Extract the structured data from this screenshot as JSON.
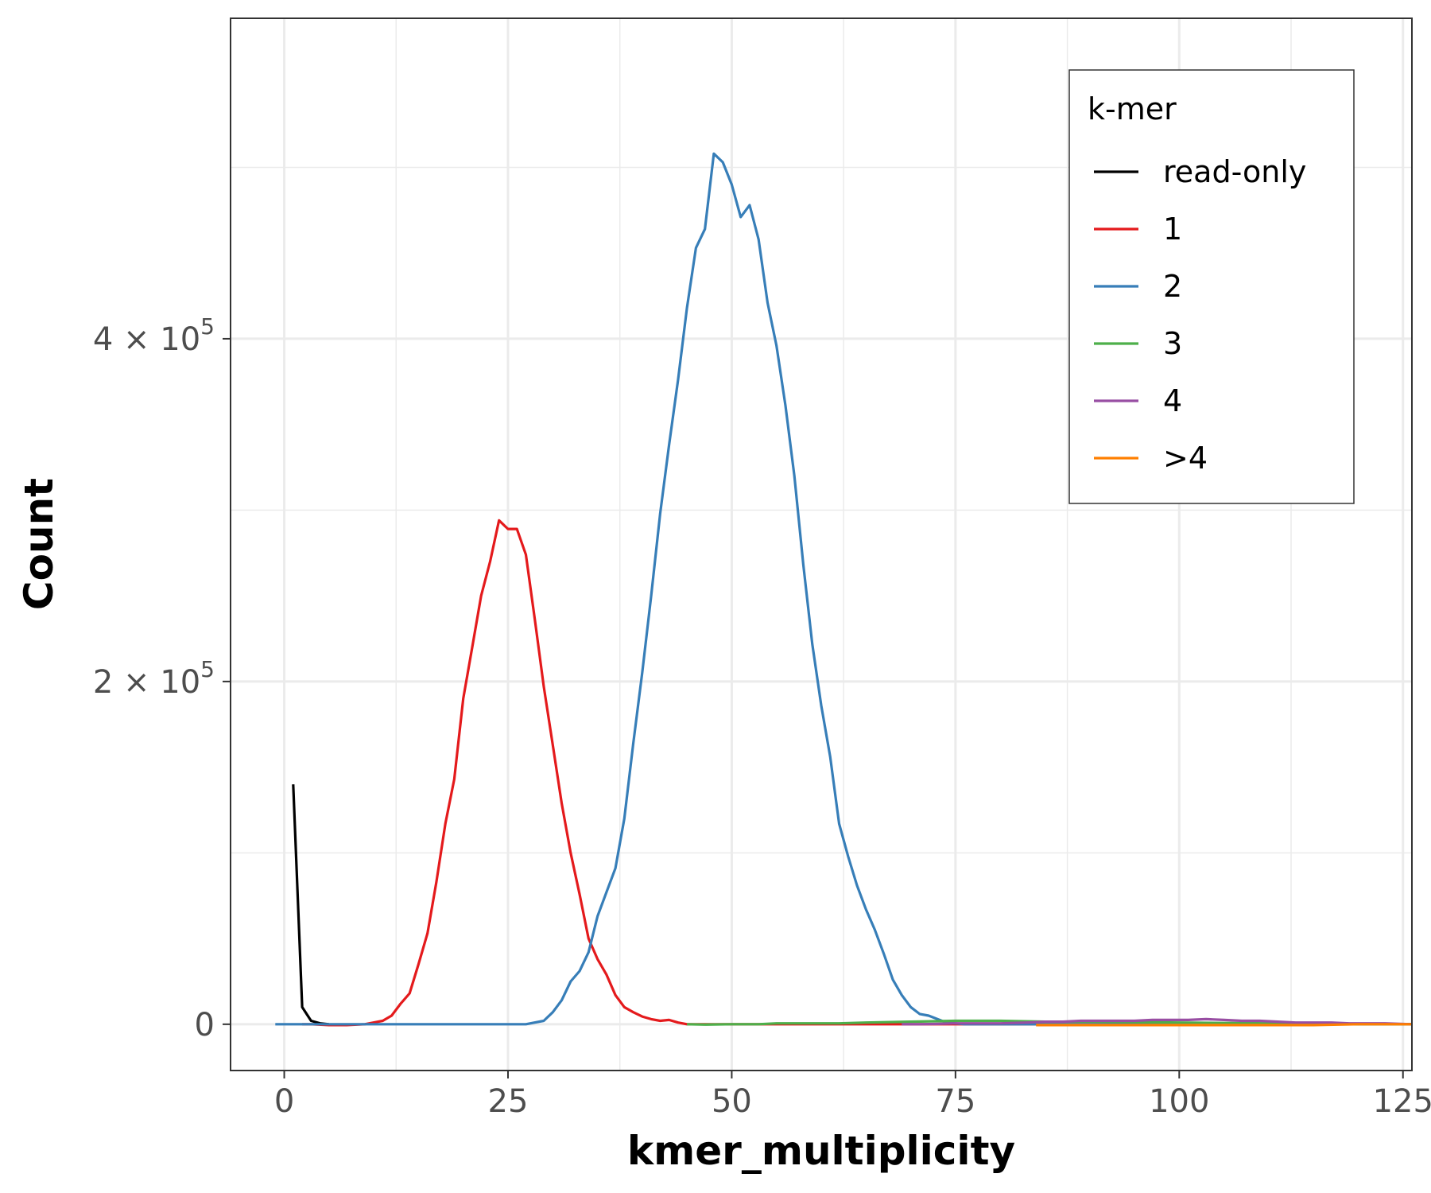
{
  "chart_data": {
    "type": "line",
    "xlabel": "kmer_multiplicity",
    "ylabel": "Count",
    "xlim": [
      -6,
      126
    ],
    "ylim": [
      -27000,
      587000
    ],
    "x_ticks": [
      0,
      25,
      50,
      75,
      100,
      125
    ],
    "x_tick_labels": [
      "0",
      "25",
      "50",
      "75",
      "100",
      "125"
    ],
    "y_ticks": [
      0,
      200000,
      400000
    ],
    "y_tick_labels": [
      {
        "mantissa": "0",
        "exp": ""
      },
      {
        "mantissa": "2 × 10",
        "exp": "5"
      },
      {
        "mantissa": "4 × 10",
        "exp": "5"
      }
    ],
    "grid": true,
    "legend": {
      "title": "k-mer",
      "position": "top-right"
    },
    "series": [
      {
        "name": "read-only",
        "color": "#000000",
        "x": [
          1,
          2,
          3,
          4,
          5
        ],
        "y": [
          140000,
          10000,
          2000,
          500,
          0
        ]
      },
      {
        "name": "1",
        "color": "#e41a1c",
        "x": [
          2,
          3,
          5,
          7,
          9,
          11,
          12,
          13,
          14,
          15,
          16,
          17,
          18,
          19,
          20,
          21,
          22,
          23,
          24,
          25,
          26,
          27,
          28,
          29,
          30,
          31,
          32,
          33,
          34,
          35,
          36,
          37,
          38,
          39,
          40,
          41,
          42,
          43,
          44,
          45,
          47,
          50,
          55,
          60,
          70,
          80,
          90,
          100,
          110,
          120,
          126
        ],
        "y": [
          0,
          0,
          -500,
          -500,
          0,
          2000,
          5000,
          12000,
          18000,
          35000,
          53000,
          83000,
          117000,
          143000,
          190000,
          220000,
          250000,
          270000,
          294000,
          289000,
          289000,
          274000,
          236000,
          197000,
          163000,
          129000,
          100000,
          76000,
          50000,
          38000,
          29000,
          17000,
          10000,
          7000,
          4500,
          3000,
          2000,
          2500,
          1000,
          0,
          0,
          0,
          0,
          0,
          0,
          0,
          0,
          0,
          0,
          0,
          0
        ]
      },
      {
        "name": "2",
        "color": "#377eb8",
        "x": [
          -1,
          1,
          24,
          26,
          27,
          29,
          30,
          31,
          32,
          33,
          34,
          35,
          36,
          37,
          38,
          39,
          40,
          41,
          42,
          43,
          44,
          45,
          46,
          47,
          48,
          49,
          50,
          51,
          52,
          53,
          54,
          55,
          56,
          57,
          58,
          59,
          60,
          61,
          62,
          63,
          64,
          65,
          66,
          67,
          68,
          69,
          70,
          71,
          72,
          73,
          74,
          75,
          76,
          78,
          80,
          85,
          90,
          100,
          110,
          120,
          126
        ],
        "y": [
          0,
          0,
          0,
          0,
          0,
          2000,
          7000,
          14000,
          25000,
          31000,
          42000,
          63000,
          77000,
          91000,
          120000,
          164000,
          205000,
          250000,
          298000,
          338000,
          376000,
          418000,
          453000,
          464000,
          508000,
          503000,
          490000,
          471000,
          478000,
          458000,
          421000,
          396000,
          361000,
          320000,
          268000,
          222000,
          186000,
          156000,
          117000,
          98000,
          81000,
          67000,
          55000,
          41000,
          26000,
          17000,
          10000,
          6000,
          5000,
          3000,
          1000,
          500,
          0,
          0,
          0,
          0,
          0,
          0,
          0,
          0,
          0
        ]
      },
      {
        "name": "3",
        "color": "#4daf4a",
        "x": [
          45,
          47,
          50,
          53,
          55,
          57,
          60,
          62,
          65,
          70,
          75,
          80,
          85,
          90,
          100,
          110,
          120,
          126
        ],
        "y": [
          0,
          -200,
          0,
          0,
          500,
          500,
          500,
          500,
          1000,
          1500,
          2000,
          2000,
          1500,
          1500,
          1000,
          500,
          0,
          0
        ]
      },
      {
        "name": "4",
        "color": "#984ea3",
        "x": [
          69,
          71,
          73,
          75,
          77,
          80,
          83,
          85,
          87,
          89,
          91,
          93,
          95,
          97,
          99,
          101,
          103,
          105,
          107,
          109,
          111,
          113,
          115,
          117,
          119,
          121,
          123,
          126
        ],
        "y": [
          0,
          0,
          200,
          500,
          500,
          500,
          1000,
          1500,
          1500,
          2000,
          2000,
          2000,
          2000,
          2500,
          2500,
          2500,
          3000,
          2500,
          2000,
          2000,
          1500,
          1000,
          1000,
          1000,
          500,
          500,
          500,
          0
        ]
      },
      {
        "name": ">4",
        "color": "#ff7f00",
        "x": [
          84,
          90,
          95,
          100,
          105,
          110,
          115,
          120,
          123,
          126
        ],
        "y": [
          -500,
          -500,
          -500,
          -500,
          -500,
          -500,
          -500,
          0,
          0,
          0
        ]
      }
    ]
  }
}
